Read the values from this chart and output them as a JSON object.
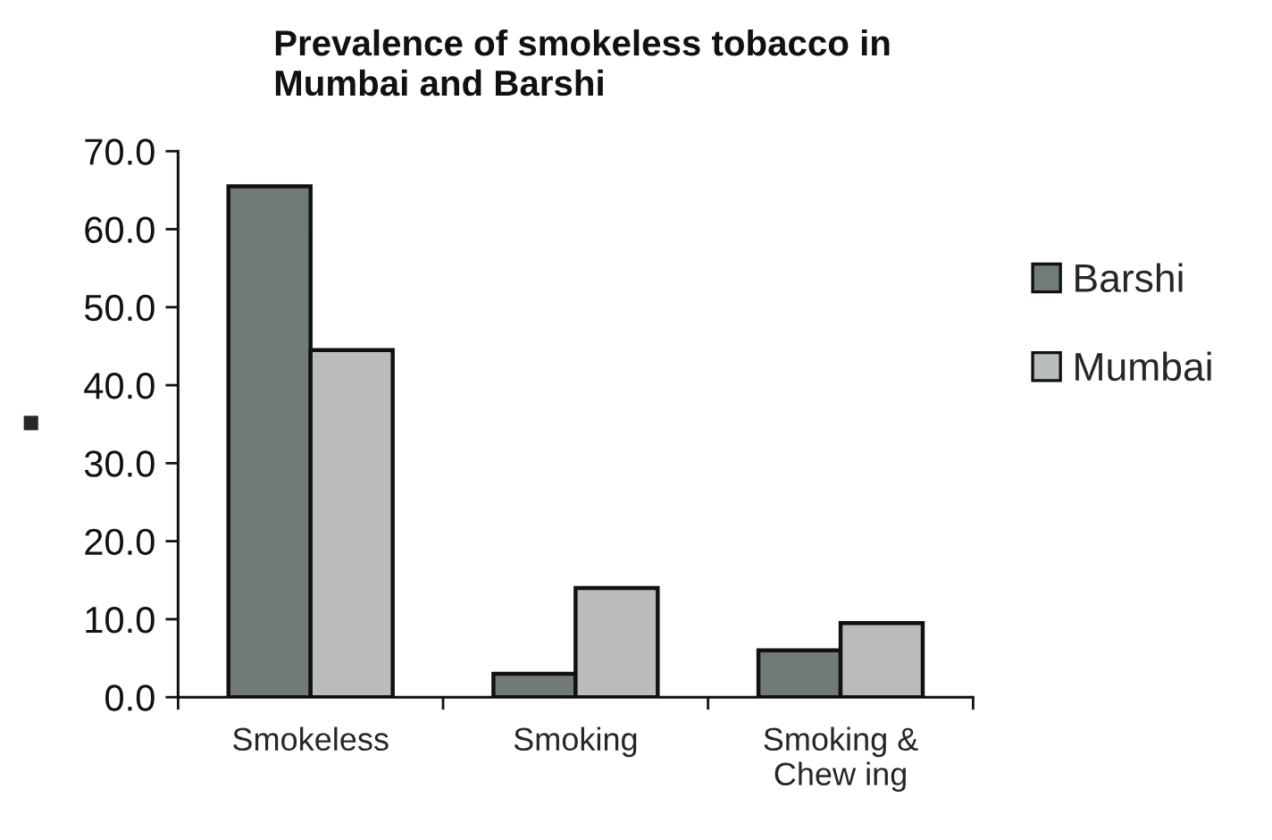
{
  "chart_data": {
    "type": "bar",
    "title": "Prevalence of smokeless tobacco in\nMumbai and Barshi",
    "ylabel": "■",
    "categories": [
      "Smokeless",
      "Smoking",
      "Smoking &\nChew ing"
    ],
    "series": [
      {
        "name": "Barshi",
        "color": "#6f7d76",
        "values": [
          65.5,
          3.0,
          6.0
        ]
      },
      {
        "name": "Mumbai",
        "color": "#b9bdbd",
        "values": [
          44.5,
          14.0,
          9.5
        ]
      }
    ],
    "ylim": [
      0,
      70
    ],
    "yticks": [
      {
        "value": 0,
        "label": "0.0"
      },
      {
        "value": 10,
        "label": "10.0"
      },
      {
        "value": 20,
        "label": "20.0"
      },
      {
        "value": 30,
        "label": "30.0"
      },
      {
        "value": 40,
        "label": "40.0"
      },
      {
        "value": 50,
        "label": "50.0"
      },
      {
        "value": 60,
        "label": "60.0"
      },
      {
        "value": 70,
        "label": "70.0"
      }
    ],
    "legend": "right"
  }
}
